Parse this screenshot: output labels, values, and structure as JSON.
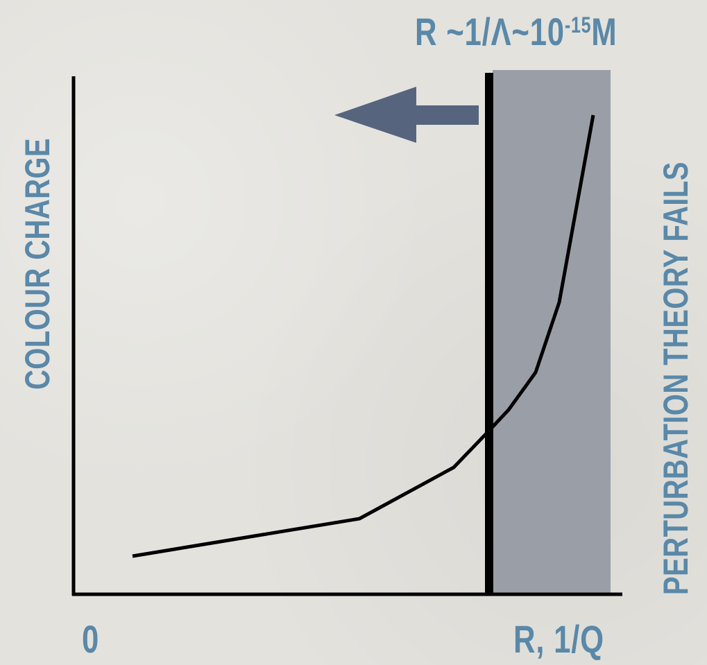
{
  "labels": {
    "top_prefix": "R ~1/Λ~10",
    "top_exponent": "-15",
    "top_suffix": "M",
    "y_axis": "COLOUR CHARGE",
    "x_axis": "R, 1/Q",
    "origin": "0",
    "region": "PERTURBATION THEORY FAILS"
  },
  "colors": {
    "label": "#5a88a8",
    "region_fill": "#9a9ea6",
    "arrow": "#56657d",
    "axis": "#000000",
    "curve": "#000000"
  },
  "arrow_direction": "left"
}
